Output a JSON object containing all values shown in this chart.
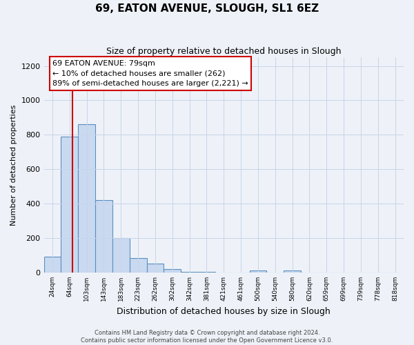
{
  "title": "69, EATON AVENUE, SLOUGH, SL1 6EZ",
  "subtitle": "Size of property relative to detached houses in Slough",
  "xlabel": "Distribution of detached houses by size in Slough",
  "ylabel": "Number of detached properties",
  "bin_labels": [
    "24sqm",
    "64sqm",
    "103sqm",
    "143sqm",
    "183sqm",
    "223sqm",
    "262sqm",
    "302sqm",
    "342sqm",
    "381sqm",
    "421sqm",
    "461sqm",
    "500sqm",
    "540sqm",
    "580sqm",
    "620sqm",
    "659sqm",
    "699sqm",
    "739sqm",
    "778sqm",
    "818sqm"
  ],
  "bar_values": [
    90,
    790,
    860,
    420,
    200,
    85,
    50,
    20,
    5,
    5,
    0,
    0,
    10,
    0,
    10,
    0,
    0,
    0,
    0,
    0,
    0
  ],
  "bar_color": "#c9d9f0",
  "bar_edge_color": "#5a8fc0",
  "annotation_line1": "69 EATON AVENUE: 79sqm",
  "annotation_line2": "← 10% of detached houses are smaller (262)",
  "annotation_line3": "89% of semi-detached houses are larger (2,221) →",
  "annotation_box_color": "#ffffff",
  "annotation_box_edge_color": "#cc0000",
  "vline_color": "#cc0000",
  "ylim": [
    0,
    1250
  ],
  "yticks": [
    0,
    200,
    400,
    600,
    800,
    1000,
    1200
  ],
  "footer_line1": "Contains HM Land Registry data © Crown copyright and database right 2024.",
  "footer_line2": "Contains public sector information licensed under the Open Government Licence v3.0.",
  "background_color": "#eef2f8"
}
